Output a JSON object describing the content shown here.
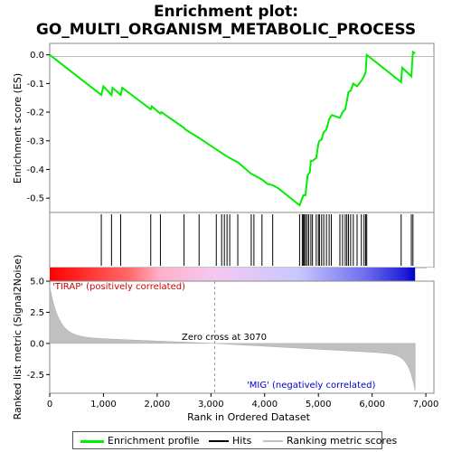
{
  "chart_data": {
    "type": "line",
    "title_line1": "Enrichment plot:",
    "title_line2": "GO_MULTI_ORGANISM_METABOLIC_PROCESS",
    "xlabel": "Rank in Ordered Dataset",
    "es_ylabel": "Enrichment score (ES)",
    "metric_ylabel": "Ranked list metric (Signal2Noise)",
    "xlim": [
      0,
      7150
    ],
    "es_ylim": [
      -0.55,
      0.04
    ],
    "metric_ylim": [
      -4.0,
      5.0
    ],
    "x_ticks": [
      0,
      1000,
      2000,
      3000,
      4000,
      5000,
      6000,
      7000
    ],
    "x_tick_labels": [
      "0",
      "1,000",
      "2,000",
      "3,000",
      "4,000",
      "5,000",
      "6,000",
      "7,000"
    ],
    "es_ticks": [
      0.0,
      -0.1,
      -0.2,
      -0.3,
      -0.4,
      -0.5
    ],
    "es_tick_labels": [
      "0.0",
      "-0.1",
      "-0.2",
      "-0.3",
      "-0.4",
      "-0.5"
    ],
    "metric_ticks": [
      5.0,
      2.5,
      0.0,
      -2.5
    ],
    "metric_tick_labels": [
      "5.0",
      "2.5",
      "0.0",
      "-2.5"
    ],
    "zero_cross_rank": 3070,
    "zero_cross_label": "Zero cross at 3070",
    "pos_label": "'TIRAP' (positively correlated)",
    "neg_label": "'MIG' (negatively correlated)",
    "n_genes": 6800,
    "series": [
      {
        "name": "Enrichment profile",
        "color": "#00ee00",
        "x": [
          0,
          960,
          1000,
          1150,
          1170,
          1320,
          1350,
          1880,
          1900,
          2060,
          2080,
          2500,
          2520,
          2780,
          3100,
          3300,
          3350,
          3500,
          3750,
          3800,
          3950,
          4050,
          4150,
          4250,
          4650,
          4680,
          4720,
          4760,
          4800,
          4840,
          4860,
          4890,
          4960,
          5000,
          5020,
          5060,
          5100,
          5150,
          5200,
          5250,
          5400,
          5450,
          5500,
          5530,
          5560,
          5600,
          5650,
          5720,
          5800,
          5850,
          5880,
          5900,
          6540,
          6560,
          6730,
          6760,
          6800
        ],
        "y": [
          0.0,
          -0.14,
          -0.11,
          -0.14,
          -0.115,
          -0.14,
          -0.115,
          -0.19,
          -0.18,
          -0.205,
          -0.2,
          -0.255,
          -0.26,
          -0.29,
          -0.33,
          -0.355,
          -0.36,
          -0.375,
          -0.415,
          -0.42,
          -0.435,
          -0.45,
          -0.455,
          -0.465,
          -0.525,
          -0.51,
          -0.49,
          -0.49,
          -0.42,
          -0.41,
          -0.37,
          -0.37,
          -0.36,
          -0.31,
          -0.3,
          -0.295,
          -0.27,
          -0.26,
          -0.225,
          -0.21,
          -0.22,
          -0.2,
          -0.19,
          -0.16,
          -0.13,
          -0.125,
          -0.1,
          -0.11,
          -0.09,
          -0.075,
          -0.06,
          0.0,
          -0.095,
          -0.045,
          -0.075,
          0.01,
          0.005
        ]
      },
      {
        "name": "Hits",
        "color": "#000000",
        "x": [
          960,
          1150,
          1320,
          1880,
          2060,
          2500,
          2780,
          3100,
          3200,
          3250,
          3300,
          3350,
          3500,
          3750,
          3800,
          3950,
          4150,
          4650,
          4700,
          4720,
          4740,
          4760,
          4790,
          4820,
          4860,
          4890,
          4960,
          5000,
          5020,
          5060,
          5100,
          5150,
          5200,
          5240,
          5400,
          5450,
          5500,
          5530,
          5560,
          5600,
          5650,
          5720,
          5800,
          5850,
          5880,
          5900,
          6540,
          6730,
          6760
        ]
      },
      {
        "name": "Ranking metric scores",
        "color": "#c0c0c0"
      }
    ]
  }
}
